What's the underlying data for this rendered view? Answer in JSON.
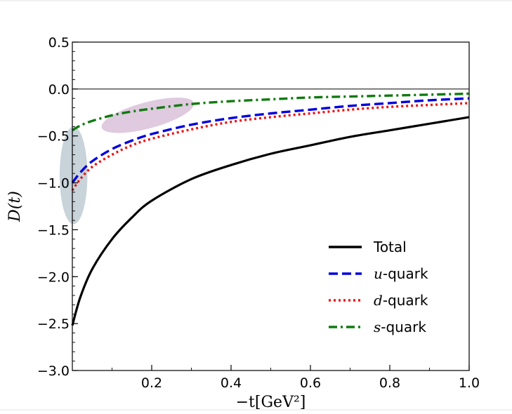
{
  "chart_data": {
    "type": "line",
    "title": "",
    "xlabel": "−t[GeV²]",
    "ylabel": "D(t)",
    "xlim": [
      0,
      1.0
    ],
    "ylim": [
      -3.0,
      0.5
    ],
    "xticks": [
      0.2,
      0.4,
      0.6,
      0.8,
      1.0
    ],
    "xtick_labels": [
      "0.2",
      "0.4",
      "0.6",
      "0.8",
      "1.0"
    ],
    "yticks": [
      0.5,
      0.0,
      -0.5,
      -1.0,
      -1.5,
      -2.0,
      -2.5,
      -3.0
    ],
    "ytick_labels": [
      "0.5",
      "0.0",
      "−0.5",
      "−1.0",
      "−1.5",
      "−2.0",
      "−2.5",
      "−3.0"
    ],
    "grid": false,
    "legend_position": "lower-right",
    "x": [
      0.0,
      0.02,
      0.05,
      0.1,
      0.15,
      0.2,
      0.3,
      0.4,
      0.5,
      0.6,
      0.7,
      0.8,
      0.9,
      1.0
    ],
    "series": [
      {
        "name": "Total",
        "legend_prefix": "",
        "legend_suffix": "Total",
        "color": "#000000",
        "style": "solid",
        "values": [
          -2.52,
          -2.22,
          -1.92,
          -1.6,
          -1.37,
          -1.19,
          -0.96,
          -0.81,
          -0.69,
          -0.6,
          -0.51,
          -0.44,
          -0.37,
          -0.3
        ]
      },
      {
        "name": "u-quark",
        "legend_prefix": "u",
        "legend_suffix": "-quark",
        "color": "#0000dd",
        "style": "dashed",
        "values": [
          -1.0,
          -0.89,
          -0.77,
          -0.64,
          -0.55,
          -0.48,
          -0.38,
          -0.31,
          -0.26,
          -0.22,
          -0.18,
          -0.15,
          -0.12,
          -0.1
        ]
      },
      {
        "name": "d-quark",
        "legend_prefix": "d",
        "legend_suffix": "-quark",
        "color": "#ee1111",
        "style": "dotted",
        "values": [
          -1.08,
          -0.96,
          -0.83,
          -0.7,
          -0.6,
          -0.53,
          -0.43,
          -0.35,
          -0.3,
          -0.26,
          -0.22,
          -0.19,
          -0.17,
          -0.15
        ]
      },
      {
        "name": "s-quark",
        "legend_prefix": "s",
        "legend_suffix": "-quark",
        "color": "#107a10",
        "style": "dashdot",
        "values": [
          -0.44,
          -0.39,
          -0.34,
          -0.28,
          -0.24,
          -0.21,
          -0.16,
          -0.13,
          -0.11,
          -0.09,
          -0.08,
          -0.07,
          -0.06,
          -0.05
        ]
      }
    ],
    "highlights": [
      {
        "shape": "ellipse",
        "color": "#9aafbb",
        "opacity": 0.55,
        "x_center": 0.003,
        "y_center": -0.92,
        "x_radius": 0.035,
        "y_radius": 0.52,
        "rotation": 0
      },
      {
        "shape": "ellipse",
        "color": "#c9a7c9",
        "opacity": 0.6,
        "x_center": 0.19,
        "y_center": -0.28,
        "x_radius": 0.12,
        "y_radius": 0.14,
        "rotation": -15
      }
    ],
    "zero_line": 0.0
  }
}
